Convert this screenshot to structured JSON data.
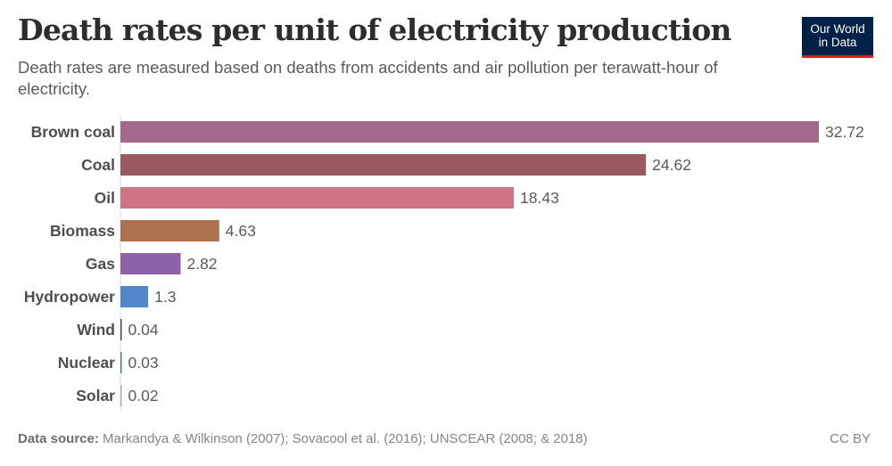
{
  "header": {
    "title": "Death rates per unit of electricity production",
    "subtitle": "Death rates are measured based on deaths from accidents and air pollution per terawatt-hour of electricity.",
    "logo_line1": "Our World",
    "logo_line2": "in Data"
  },
  "footer": {
    "source_label": "Data source:",
    "source_text": "Markandya & Wilkinson (2007); Sovacool et al. (2016); UNSCEAR (2008; & 2018)",
    "license": "CC BY"
  },
  "chart_data": {
    "type": "bar",
    "orientation": "horizontal",
    "title": "Death rates per unit of electricity production",
    "xlabel": "",
    "ylabel": "",
    "unit": "deaths per terawatt-hour",
    "xlim": [
      0,
      32.72
    ],
    "grid": false,
    "legend": "none",
    "categories": [
      "Brown coal",
      "Coal",
      "Oil",
      "Biomass",
      "Gas",
      "Hydropower",
      "Wind",
      "Nuclear",
      "Solar"
    ],
    "values": [
      32.72,
      24.62,
      18.43,
      4.63,
      2.82,
      1.3,
      0.04,
      0.03,
      0.02
    ],
    "value_labels": [
      "32.72",
      "24.62",
      "18.43",
      "4.63",
      "2.82",
      "1.3",
      "0.04",
      "0.03",
      "0.02"
    ],
    "colors": [
      "#a2698a",
      "#9d5961",
      "#d07484",
      "#ad7150",
      "#8c63a8",
      "#4f87cb",
      "#3b4e6e",
      "#3f7f96",
      "#c9a98a"
    ]
  }
}
